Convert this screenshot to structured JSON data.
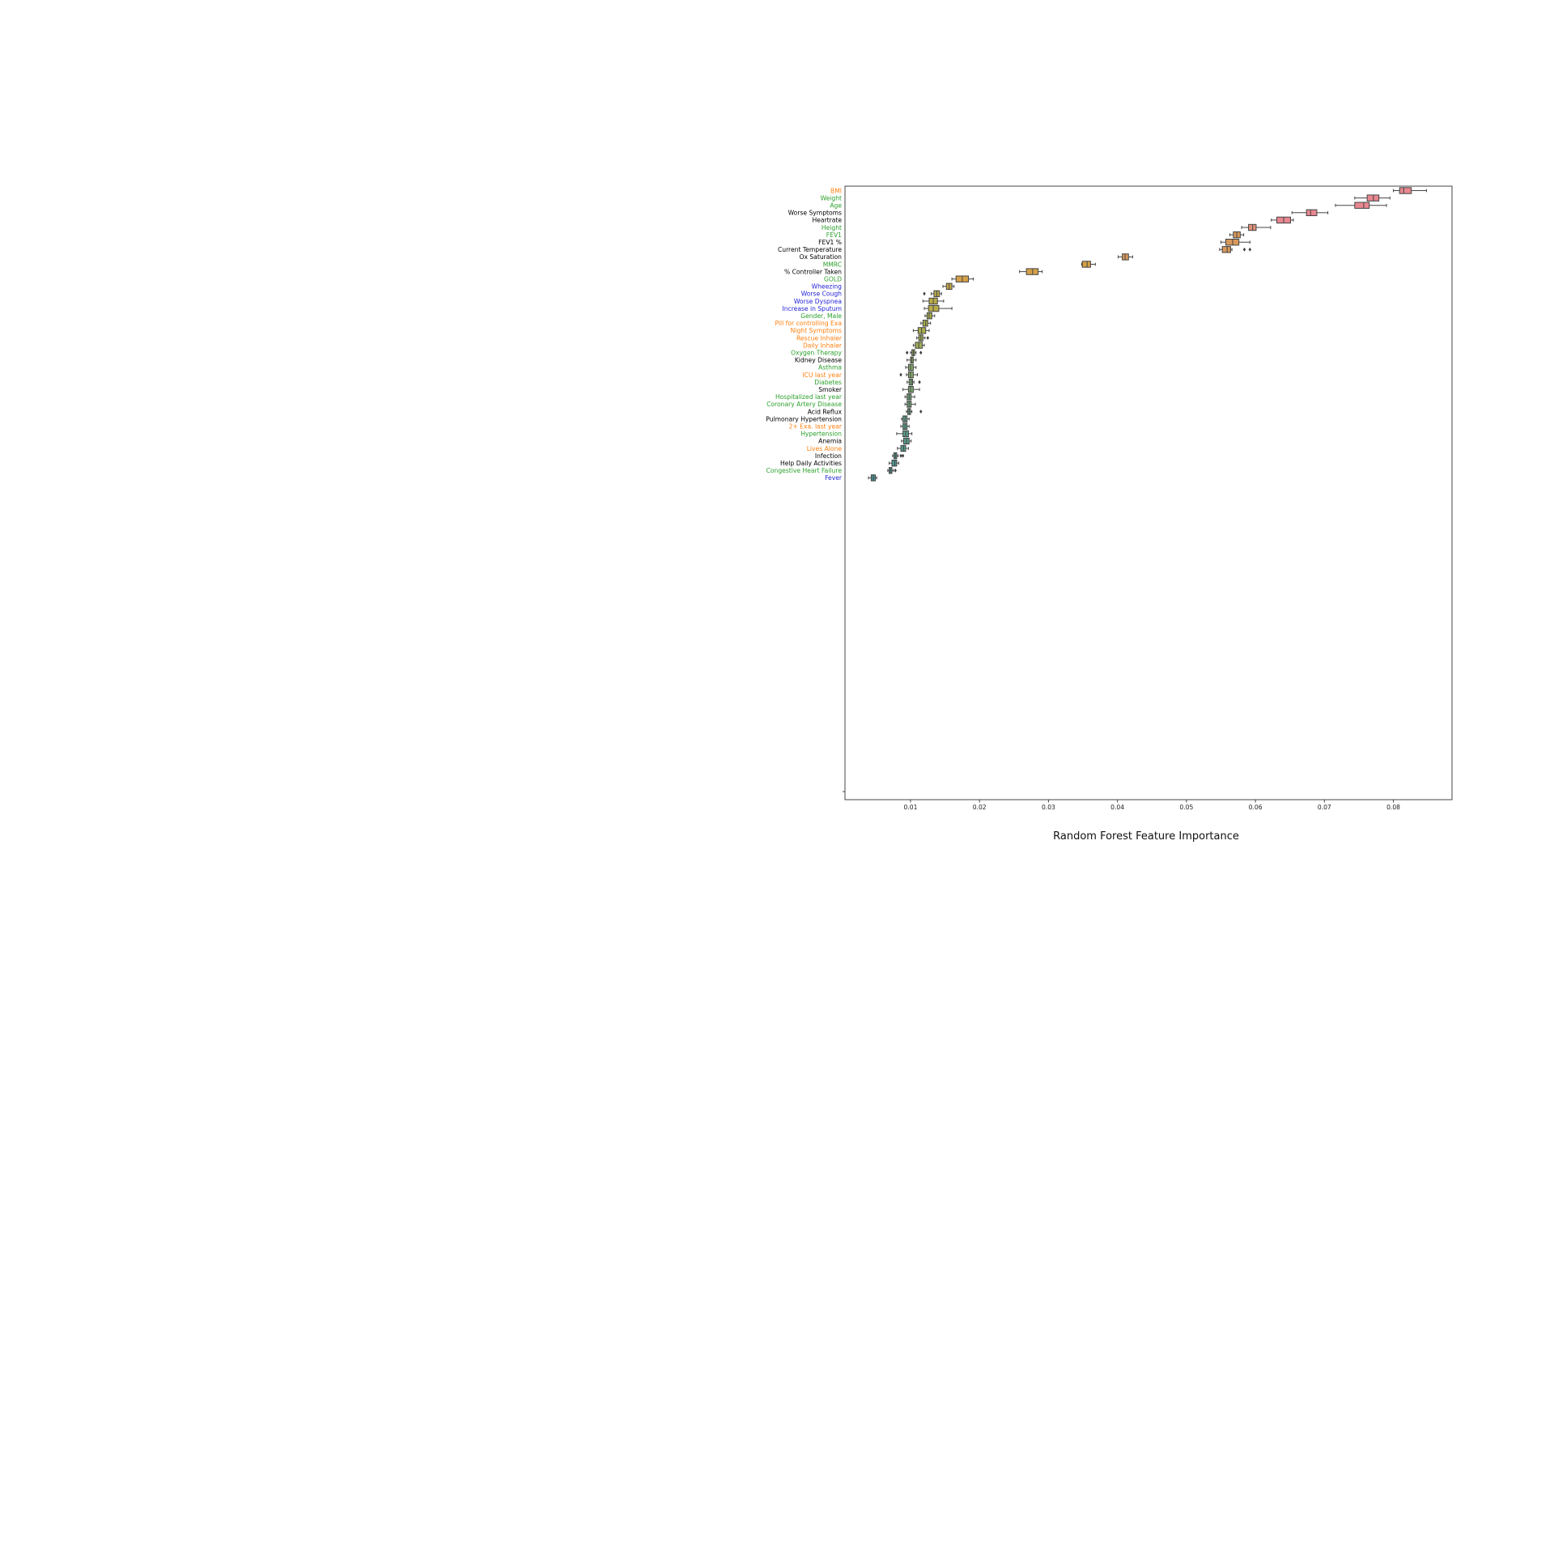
{
  "chart_data": {
    "type": "box",
    "title": "",
    "xlabel": "Random Forest Feature Importance",
    "ylabel": "",
    "xlim": [
      0.0005,
      0.0885
    ],
    "xticks": [
      "0.01",
      "0.02",
      "0.03",
      "0.04",
      "0.05",
      "0.06",
      "0.07",
      "0.08"
    ],
    "grid": false,
    "legend": "none",
    "colors": {
      "orange_label": "#ff7f0e",
      "green_label": "#2ca02c",
      "blue_label": "#1f1fd6",
      "black_label": "#000000",
      "axis": "#444444"
    },
    "features": [
      {
        "name": "BMI",
        "label_color": "#ff7f0e",
        "box_color": "#e8868f",
        "q1": 0.0809,
        "median": 0.0815,
        "q3": 0.0826,
        "wlow": 0.08,
        "whigh": 0.0848,
        "outliers": []
      },
      {
        "name": "Weight",
        "label_color": "#2ca02c",
        "box_color": "#e8868f",
        "q1": 0.0762,
        "median": 0.0771,
        "q3": 0.0779,
        "wlow": 0.0744,
        "whigh": 0.0795,
        "outliers": []
      },
      {
        "name": "Age",
        "label_color": "#2ca02c",
        "box_color": "#e8868f",
        "q1": 0.0744,
        "median": 0.0757,
        "q3": 0.0765,
        "wlow": 0.0716,
        "whigh": 0.079,
        "outliers": []
      },
      {
        "name": "Worse Symptoms",
        "label_color": "#000000",
        "box_color": "#e8868f",
        "q1": 0.0674,
        "median": 0.068,
        "q3": 0.0689,
        "wlow": 0.0653,
        "whigh": 0.0705,
        "outliers": []
      },
      {
        "name": "Heartrate",
        "label_color": "#000000",
        "box_color": "#e8868f",
        "q1": 0.0631,
        "median": 0.0641,
        "q3": 0.0651,
        "wlow": 0.0623,
        "whigh": 0.0655,
        "outliers": []
      },
      {
        "name": "Height",
        "label_color": "#2ca02c",
        "box_color": "#e0927a",
        "q1": 0.059,
        "median": 0.0596,
        "q3": 0.0601,
        "wlow": 0.058,
        "whigh": 0.0622,
        "outliers": []
      },
      {
        "name": "FEV1",
        "label_color": "#2ca02c",
        "box_color": "#d9995a",
        "q1": 0.0568,
        "median": 0.0573,
        "q3": 0.0578,
        "wlow": 0.0563,
        "whigh": 0.0583,
        "outliers": []
      },
      {
        "name": "FEV1 %",
        "label_color": "#000000",
        "box_color": "#d9995a",
        "q1": 0.0557,
        "median": 0.0567,
        "q3": 0.0576,
        "wlow": 0.055,
        "whigh": 0.0592,
        "outliers": []
      },
      {
        "name": "Current Temperature",
        "label_color": "#000000",
        "box_color": "#d9995a",
        "q1": 0.0552,
        "median": 0.0559,
        "q3": 0.0564,
        "wlow": 0.0548,
        "whigh": 0.0566,
        "outliers": [
          0.0584,
          0.0592
        ]
      },
      {
        "name": "Ox Saturation",
        "label_color": "#000000",
        "box_color": "#d9995a",
        "q1": 0.0407,
        "median": 0.0411,
        "q3": 0.0416,
        "wlow": 0.0401,
        "whigh": 0.0422,
        "outliers": []
      },
      {
        "name": "MMRC",
        "label_color": "#2ca02c",
        "box_color": "#d4a048",
        "q1": 0.0349,
        "median": 0.0356,
        "q3": 0.0361,
        "wlow": 0.0348,
        "whigh": 0.0368,
        "outliers": []
      },
      {
        "name": "% Controller Taken",
        "label_color": "#000000",
        "box_color": "#d4a048",
        "q1": 0.0268,
        "median": 0.0277,
        "q3": 0.0285,
        "wlow": 0.0258,
        "whigh": 0.0291,
        "outliers": []
      },
      {
        "name": "GOLD",
        "label_color": "#2ca02c",
        "box_color": "#d4a048",
        "q1": 0.0166,
        "median": 0.0175,
        "q3": 0.0184,
        "wlow": 0.016,
        "whigh": 0.0191,
        "outliers": []
      },
      {
        "name": "Wheezing",
        "label_color": "#1f1fd6",
        "box_color": "#c8a848",
        "q1": 0.0152,
        "median": 0.0156,
        "q3": 0.016,
        "wlow": 0.0147,
        "whigh": 0.0163,
        "outliers": []
      },
      {
        "name": "Worse Cough",
        "label_color": "#1f1fd6",
        "box_color": "#b9ab48",
        "q1": 0.0134,
        "median": 0.0138,
        "q3": 0.0142,
        "wlow": 0.013,
        "whigh": 0.0145,
        "outliers": [
          0.012
        ]
      },
      {
        "name": "Worse Dyspnea",
        "label_color": "#1f1fd6",
        "box_color": "#b9ab48",
        "q1": 0.0127,
        "median": 0.0133,
        "q3": 0.0139,
        "wlow": 0.0118,
        "whigh": 0.0148,
        "outliers": []
      },
      {
        "name": "Increase in Sputum",
        "label_color": "#1f1fd6",
        "box_color": "#b9ab48",
        "q1": 0.0126,
        "median": 0.0133,
        "q3": 0.0141,
        "wlow": 0.012,
        "whigh": 0.016,
        "outliers": []
      },
      {
        "name": "Gender, Male",
        "label_color": "#2ca02c",
        "box_color": "#a8ad4c",
        "q1": 0.0124,
        "median": 0.0127,
        "q3": 0.0131,
        "wlow": 0.0121,
        "whigh": 0.0135,
        "outliers": []
      },
      {
        "name": "Pill for controlling Exa",
        "label_color": "#ff7f0e",
        "box_color": "#a8ad4c",
        "q1": 0.0118,
        "median": 0.0122,
        "q3": 0.0125,
        "wlow": 0.0115,
        "whigh": 0.0129,
        "outliers": []
      },
      {
        "name": "Night Symptoms",
        "label_color": "#ff7f0e",
        "box_color": "#a8ad4c",
        "q1": 0.0111,
        "median": 0.0116,
        "q3": 0.0122,
        "wlow": 0.0104,
        "whigh": 0.0127,
        "outliers": []
      },
      {
        "name": "Rescue Inhaler",
        "label_color": "#ff7f0e",
        "box_color": "#a0ad55",
        "q1": 0.0112,
        "median": 0.0115,
        "q3": 0.0118,
        "wlow": 0.0109,
        "whigh": 0.0121,
        "outliers": [
          0.0125
        ]
      },
      {
        "name": "Daily Inhaler",
        "label_color": "#ff7f0e",
        "box_color": "#a0ad55",
        "q1": 0.0107,
        "median": 0.0112,
        "q3": 0.0117,
        "wlow": 0.0104,
        "whigh": 0.012,
        "outliers": []
      },
      {
        "name": "Oxygen Therapy",
        "label_color": "#2ca02c",
        "box_color": "#90ad62",
        "q1": 0.0102,
        "median": 0.0104,
        "q3": 0.0106,
        "wlow": 0.01,
        "whigh": 0.0108,
        "outliers": [
          0.0095,
          0.0115
        ]
      },
      {
        "name": "Kidney Disease",
        "label_color": "#000000",
        "box_color": "#90ad62",
        "q1": 0.01,
        "median": 0.0102,
        "q3": 0.0104,
        "wlow": 0.0095,
        "whigh": 0.0108,
        "outliers": []
      },
      {
        "name": "Asthma",
        "label_color": "#2ca02c",
        "box_color": "#85ab6a",
        "q1": 0.0097,
        "median": 0.01,
        "q3": 0.0104,
        "wlow": 0.0093,
        "whigh": 0.0108,
        "outliers": []
      },
      {
        "name": "ICU last year",
        "label_color": "#ff7f0e",
        "box_color": "#85ab6a",
        "q1": 0.0097,
        "median": 0.01,
        "q3": 0.0104,
        "wlow": 0.0094,
        "whigh": 0.011,
        "outliers": [
          0.0086
        ]
      },
      {
        "name": "Diabetes",
        "label_color": "#2ca02c",
        "box_color": "#7ea872",
        "q1": 0.0098,
        "median": 0.0101,
        "q3": 0.0103,
        "wlow": 0.0095,
        "whigh": 0.0105,
        "outliers": [
          0.0113
        ]
      },
      {
        "name": "Smoker",
        "label_color": "#000000",
        "box_color": "#7ea872",
        "q1": 0.0097,
        "median": 0.01,
        "q3": 0.0104,
        "wlow": 0.0089,
        "whigh": 0.0113,
        "outliers": []
      },
      {
        "name": "Hospitalized last year",
        "label_color": "#2ca02c",
        "box_color": "#72a47a",
        "q1": 0.0095,
        "median": 0.0098,
        "q3": 0.0101,
        "wlow": 0.0092,
        "whigh": 0.0106,
        "outliers": []
      },
      {
        "name": "Coronary Artery Disease",
        "label_color": "#2ca02c",
        "box_color": "#72a47a",
        "q1": 0.0095,
        "median": 0.0098,
        "q3": 0.0101,
        "wlow": 0.0092,
        "whigh": 0.0107,
        "outliers": []
      },
      {
        "name": "Acid Reflux",
        "label_color": "#000000",
        "box_color": "#6aa07f",
        "q1": 0.0096,
        "median": 0.0098,
        "q3": 0.01,
        "wlow": 0.0094,
        "whigh": 0.0102,
        "outliers": [
          0.0115
        ]
      },
      {
        "name": "Pulmonary Hypertension",
        "label_color": "#000000",
        "box_color": "#619e84",
        "q1": 0.0089,
        "median": 0.0092,
        "q3": 0.0095,
        "wlow": 0.0087,
        "whigh": 0.0098,
        "outliers": []
      },
      {
        "name": "2+ Exa. last year",
        "label_color": "#ff7f0e",
        "box_color": "#5c9d88",
        "q1": 0.0089,
        "median": 0.0092,
        "q3": 0.0095,
        "wlow": 0.0086,
        "whigh": 0.0098,
        "outliers": []
      },
      {
        "name": "Hypertension",
        "label_color": "#2ca02c",
        "box_color": "#5c9d88",
        "q1": 0.0089,
        "median": 0.0093,
        "q3": 0.0097,
        "wlow": 0.008,
        "whigh": 0.0102,
        "outliers": []
      },
      {
        "name": "Anemia",
        "label_color": "#000000",
        "box_color": "#589b8b",
        "q1": 0.009,
        "median": 0.0094,
        "q3": 0.0098,
        "wlow": 0.0087,
        "whigh": 0.0101,
        "outliers": []
      },
      {
        "name": "Lives Alone",
        "label_color": "#ff7f0e",
        "box_color": "#559a8e",
        "q1": 0.0086,
        "median": 0.009,
        "q3": 0.0093,
        "wlow": 0.0081,
        "whigh": 0.0097,
        "outliers": []
      },
      {
        "name": "Infection",
        "label_color": "#000000",
        "box_color": "#519890",
        "q1": 0.0076,
        "median": 0.0078,
        "q3": 0.008,
        "wlow": 0.0074,
        "whigh": 0.0082,
        "outliers": [
          0.0086,
          0.0089
        ]
      },
      {
        "name": "Help Daily Activities",
        "label_color": "#000000",
        "box_color": "#4e9692",
        "q1": 0.0073,
        "median": 0.0077,
        "q3": 0.008,
        "wlow": 0.0069,
        "whigh": 0.0083,
        "outliers": []
      },
      {
        "name": "Congestive Heart Failure",
        "label_color": "#2ca02c",
        "box_color": "#4c9594",
        "q1": 0.0069,
        "median": 0.0071,
        "q3": 0.0073,
        "wlow": 0.0067,
        "whigh": 0.0075,
        "outliers": [
          0.0078
        ]
      },
      {
        "name": "Fever",
        "label_color": "#1f1fd6",
        "box_color": "#4a9496",
        "q1": 0.0043,
        "median": 0.0046,
        "q3": 0.0049,
        "wlow": 0.0039,
        "whigh": 0.0051,
        "outliers": []
      }
    ]
  }
}
